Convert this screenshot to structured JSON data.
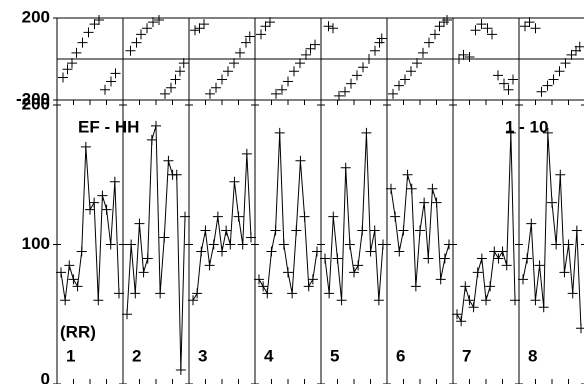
{
  "chart_data": [
    {
      "type": "line",
      "ylim": [
        0,
        200
      ],
      "yticks": [
        0,
        100,
        200
      ],
      "color": "#000000",
      "annotations": [
        "EF - HH",
        "1 - 10",
        "(RR)"
      ],
      "series": [
        {
          "name": "1",
          "values": [
            80,
            60,
            85,
            75,
            70,
            95,
            170,
            125,
            130,
            60,
            135,
            125,
            100,
            145,
            65
          ]
        },
        {
          "name": "2",
          "values": [
            50,
            100,
            65,
            115,
            80,
            90,
            175,
            185,
            65,
            105,
            160,
            150,
            150,
            10,
            120
          ]
        },
        {
          "name": "3",
          "values": [
            60,
            65,
            95,
            110,
            85,
            100,
            120,
            95,
            110,
            100,
            145,
            120,
            100,
            165,
            105
          ]
        },
        {
          "name": "4",
          "values": [
            75,
            70,
            65,
            95,
            110,
            180,
            100,
            80,
            65,
            110,
            160,
            120,
            70,
            75,
            95
          ]
        },
        {
          "name": "5",
          "values": [
            90,
            65,
            120,
            90,
            60,
            155,
            100,
            80,
            85,
            110,
            180,
            95,
            110,
            60,
            100
          ]
        },
        {
          "name": "6",
          "values": [
            140,
            120,
            95,
            110,
            150,
            140,
            70,
            110,
            130,
            90,
            140,
            130,
            75,
            90,
            100
          ]
        },
        {
          "name": "7",
          "values": [
            50,
            45,
            70,
            60,
            55,
            80,
            90,
            60,
            70,
            95,
            90,
            95,
            85,
            180,
            60
          ]
        },
        {
          "name": "8",
          "values": [
            75,
            90,
            115,
            60,
            85,
            55,
            180,
            130,
            100,
            150,
            80,
            100,
            65,
            110,
            40
          ]
        }
      ]
    },
    {
      "type": "scatter",
      "xlim": [
        -200,
        200
      ],
      "ylim": [
        -200,
        200
      ],
      "yticks": [
        -200,
        200
      ],
      "color": "#000000",
      "series": [
        {
          "x": [
            -180,
            -150,
            -120,
            -90,
            -50,
            -10,
            30,
            60,
            100,
            140,
            170
          ],
          "y": [
            -90,
            -50,
            -20,
            30,
            80,
            130,
            170,
            190,
            -150,
            -110,
            -70
          ]
        },
        {
          "x": [
            -170,
            -130,
            -100,
            -60,
            -20,
            20,
            60,
            100,
            130,
            160,
            185
          ],
          "y": [
            40,
            80,
            120,
            150,
            180,
            190,
            -170,
            -140,
            -100,
            -60,
            -20
          ]
        },
        {
          "x": [
            -180,
            -150,
            -120,
            -80,
            -40,
            0,
            40,
            80,
            120,
            160,
            185
          ],
          "y": [
            140,
            150,
            170,
            -170,
            -140,
            -100,
            -60,
            -20,
            30,
            80,
            110
          ]
        },
        {
          "x": [
            -180,
            -150,
            -120,
            -80,
            -40,
            0,
            40,
            80,
            120,
            150,
            180
          ],
          "y": [
            120,
            160,
            180,
            -170,
            -150,
            -110,
            -60,
            -20,
            20,
            50,
            70
          ]
        },
        {
          "x": [
            -170,
            -140,
            -100,
            -60,
            -20,
            20,
            60,
            100,
            140,
            170,
            185
          ],
          "y": [
            160,
            150,
            -180,
            -160,
            -120,
            -80,
            -40,
            0,
            40,
            80,
            100
          ]
        },
        {
          "x": [
            -180,
            -140,
            -100,
            -60,
            -20,
            20,
            60,
            100,
            130,
            160,
            180
          ],
          "y": [
            -170,
            -130,
            -100,
            -60,
            -20,
            30,
            80,
            120,
            160,
            180,
            190
          ]
        },
        {
          "x": [
            -180,
            -150,
            -110,
            -70,
            -30,
            10,
            40,
            80,
            120,
            150,
            180
          ],
          "y": [
            0,
            20,
            10,
            140,
            170,
            150,
            120,
            -80,
            -120,
            -150,
            -100
          ]
        },
        {
          "x": [
            -180,
            -150,
            -110,
            -70,
            -30,
            10,
            50,
            90,
            130,
            160,
            185
          ],
          "y": [
            160,
            180,
            150,
            -160,
            -130,
            -100,
            -60,
            -20,
            20,
            40,
            60
          ]
        }
      ]
    }
  ]
}
